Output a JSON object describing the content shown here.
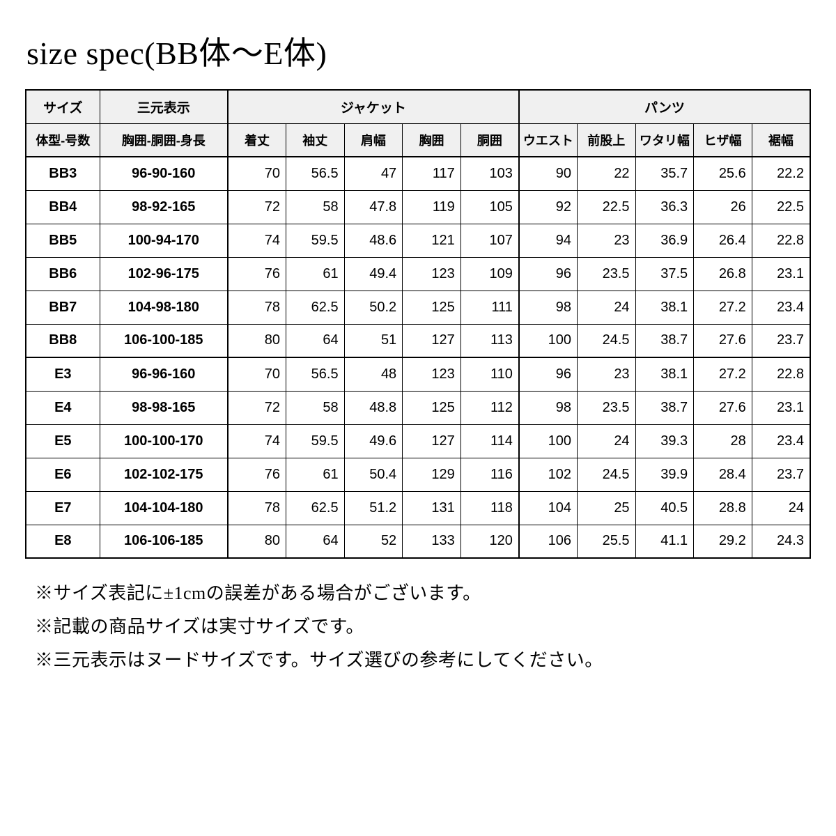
{
  "title": "size spec(BB体〜E体)",
  "table": {
    "header": {
      "col1_top": "サイズ",
      "col1_sub": "体型-号数",
      "col2_top": "三元表示",
      "col2_sub": "胸囲-胴囲-身長",
      "jacket_group": "ジャケット",
      "pants_group": "パンツ",
      "jacket_cols": [
        "着丈",
        "袖丈",
        "肩幅",
        "胸囲",
        "胴囲"
      ],
      "pants_cols": [
        "ウエスト",
        "前股上",
        "ワタリ幅",
        "ヒザ幅",
        "裾幅"
      ]
    },
    "groups": [
      {
        "rows": [
          {
            "size": "BB3",
            "dims": "96-90-160",
            "jacket": [
              "70",
              "56.5",
              "47",
              "117",
              "103"
            ],
            "pants": [
              "90",
              "22",
              "35.7",
              "25.6",
              "22.2"
            ]
          },
          {
            "size": "BB4",
            "dims": "98-92-165",
            "jacket": [
              "72",
              "58",
              "47.8",
              "119",
              "105"
            ],
            "pants": [
              "92",
              "22.5",
              "36.3",
              "26",
              "22.5"
            ]
          },
          {
            "size": "BB5",
            "dims": "100-94-170",
            "jacket": [
              "74",
              "59.5",
              "48.6",
              "121",
              "107"
            ],
            "pants": [
              "94",
              "23",
              "36.9",
              "26.4",
              "22.8"
            ]
          },
          {
            "size": "BB6",
            "dims": "102-96-175",
            "jacket": [
              "76",
              "61",
              "49.4",
              "123",
              "109"
            ],
            "pants": [
              "96",
              "23.5",
              "37.5",
              "26.8",
              "23.1"
            ]
          },
          {
            "size": "BB7",
            "dims": "104-98-180",
            "jacket": [
              "78",
              "62.5",
              "50.2",
              "125",
              "111"
            ],
            "pants": [
              "98",
              "24",
              "38.1",
              "27.2",
              "23.4"
            ]
          },
          {
            "size": "BB8",
            "dims": "106-100-185",
            "jacket": [
              "80",
              "64",
              "51",
              "127",
              "113"
            ],
            "pants": [
              "100",
              "24.5",
              "38.7",
              "27.6",
              "23.7"
            ]
          }
        ]
      },
      {
        "rows": [
          {
            "size": "E3",
            "dims": "96-96-160",
            "jacket": [
              "70",
              "56.5",
              "48",
              "123",
              "110"
            ],
            "pants": [
              "96",
              "23",
              "38.1",
              "27.2",
              "22.8"
            ]
          },
          {
            "size": "E4",
            "dims": "98-98-165",
            "jacket": [
              "72",
              "58",
              "48.8",
              "125",
              "112"
            ],
            "pants": [
              "98",
              "23.5",
              "38.7",
              "27.6",
              "23.1"
            ]
          },
          {
            "size": "E5",
            "dims": "100-100-170",
            "jacket": [
              "74",
              "59.5",
              "49.6",
              "127",
              "114"
            ],
            "pants": [
              "100",
              "24",
              "39.3",
              "28",
              "23.4"
            ]
          },
          {
            "size": "E6",
            "dims": "102-102-175",
            "jacket": [
              "76",
              "61",
              "50.4",
              "129",
              "116"
            ],
            "pants": [
              "102",
              "24.5",
              "39.9",
              "28.4",
              "23.7"
            ]
          },
          {
            "size": "E7",
            "dims": "104-104-180",
            "jacket": [
              "78",
              "62.5",
              "51.2",
              "131",
              "118"
            ],
            "pants": [
              "104",
              "25",
              "40.5",
              "28.8",
              "24"
            ]
          },
          {
            "size": "E8",
            "dims": "106-106-185",
            "jacket": [
              "80",
              "64",
              "52",
              "133",
              "120"
            ],
            "pants": [
              "106",
              "25.5",
              "41.1",
              "29.2",
              "24.3"
            ]
          }
        ]
      }
    ]
  },
  "notes": [
    "※サイズ表記に±1cmの誤差がある場合がございます。",
    "※記載の商品サイズは実寸サイズです。",
    "※三元表示はヌードサイズです。サイズ選びの参考にしてください。"
  ],
  "style": {
    "header_bg": "#f0f0f0",
    "border_color": "#000000",
    "page_bg": "#ffffff",
    "title_fontsize": 46,
    "cell_fontsize": 20,
    "header_fontsize": 19,
    "notes_fontsize": 26
  }
}
